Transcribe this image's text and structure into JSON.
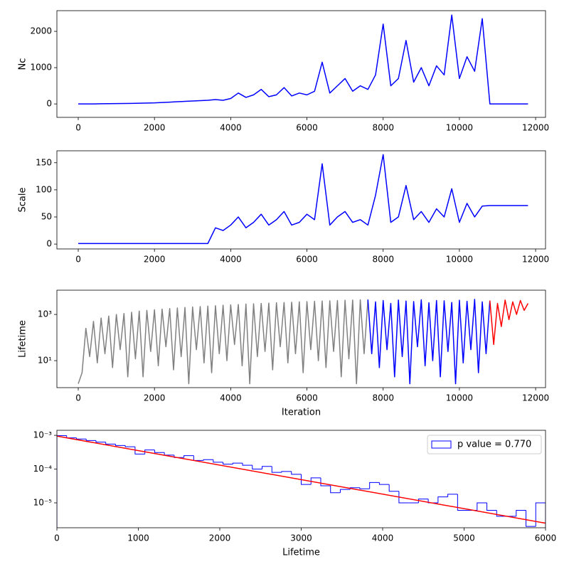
{
  "chart_data": [
    {
      "type": "line",
      "ylabel": "Nc",
      "drawstyle": "steps",
      "x": [
        0,
        200,
        400,
        600,
        800,
        1000,
        1200,
        1400,
        1600,
        1800,
        2000,
        2200,
        2400,
        2600,
        2800,
        3000,
        3200,
        3400,
        3600,
        3800,
        4000,
        4200,
        4400,
        4600,
        4800,
        5000,
        5200,
        5400,
        5600,
        5800,
        6000,
        6200,
        6400,
        6600,
        6800,
        7000,
        7200,
        7400,
        7600,
        7800,
        8000,
        8200,
        8400,
        8600,
        8800,
        9000,
        9200,
        9400,
        9600,
        9800,
        10000,
        10200,
        10400,
        10600,
        10800,
        11000,
        11200,
        11400,
        11600,
        11800
      ],
      "series": [
        {
          "color": "blue",
          "values": [
            0,
            0,
            0,
            5,
            8,
            10,
            12,
            15,
            20,
            25,
            30,
            40,
            50,
            60,
            70,
            80,
            90,
            100,
            120,
            100,
            150,
            300,
            180,
            250,
            400,
            200,
            250,
            450,
            220,
            300,
            250,
            350,
            1150,
            300,
            500,
            700,
            350,
            500,
            400,
            800,
            2200,
            500,
            700,
            1750,
            600,
            1000,
            500,
            1050,
            800,
            2450,
            700,
            1300,
            900,
            2350,
            0,
            0,
            0,
            0,
            0,
            0
          ]
        }
      ],
      "xlim": [
        -560,
        12260
      ],
      "xticks": [
        0,
        2000,
        4000,
        6000,
        8000,
        10000,
        12000
      ],
      "ylim": [
        -370,
        2570
      ],
      "yticks": [
        0,
        1000,
        2000
      ]
    },
    {
      "type": "line",
      "ylabel": "Scale",
      "x": [
        0,
        200,
        400,
        600,
        800,
        1000,
        1200,
        1400,
        1600,
        1800,
        2000,
        2200,
        2400,
        2600,
        2800,
        3000,
        3200,
        3400,
        3600,
        3800,
        4000,
        4200,
        4400,
        4600,
        4800,
        5000,
        5200,
        5400,
        5600,
        5800,
        6000,
        6200,
        6400,
        6600,
        6800,
        7000,
        7200,
        7400,
        7600,
        7800,
        8000,
        8200,
        8400,
        8600,
        8800,
        9000,
        9200,
        9400,
        9600,
        9800,
        10000,
        10200,
        10400,
        10600,
        10800,
        11000,
        11200,
        11400,
        11600,
        11800
      ],
      "series": [
        {
          "color": "blue",
          "values": [
            1,
            1,
            1,
            1,
            1,
            1,
            1,
            1,
            1,
            1,
            1,
            1,
            1,
            1,
            1,
            1,
            1,
            1,
            30,
            25,
            35,
            50,
            30,
            40,
            55,
            35,
            45,
            60,
            35,
            40,
            55,
            45,
            148,
            35,
            50,
            60,
            40,
            45,
            35,
            90,
            165,
            40,
            50,
            108,
            45,
            60,
            40,
            65,
            50,
            102,
            40,
            75,
            50,
            70,
            71,
            71,
            71,
            71,
            71,
            71
          ]
        }
      ],
      "xlim": [
        -560,
        12260
      ],
      "xticks": [
        0,
        2000,
        4000,
        6000,
        8000,
        10000,
        12000
      ],
      "ylim": [
        -9,
        172
      ],
      "yticks": [
        0,
        50,
        100,
        150
      ]
    },
    {
      "type": "line",
      "ylabel": "Lifetime",
      "xlabel": "Iteration",
      "ylog": true,
      "series": [
        {
          "color": "gray",
          "x": [
            0,
            100,
            200,
            300,
            400,
            500,
            600,
            700,
            800,
            900,
            1000,
            1100,
            1200,
            1300,
            1400,
            1500,
            1600,
            1700,
            1800,
            1900,
            2000,
            2100,
            2200,
            2300,
            2400,
            2500,
            2600,
            2700,
            2800,
            2900,
            3000,
            3100,
            3200,
            3300,
            3400,
            3500,
            3600,
            3700,
            3800,
            3900,
            4000,
            4100,
            4200,
            4300,
            4400,
            4500,
            4600,
            4700,
            4800,
            4900,
            5000,
            5100,
            5200,
            5300,
            5400,
            5500,
            5600,
            5700,
            5800,
            5900,
            6000,
            6100,
            6200,
            6300,
            6400,
            6500,
            6600,
            6700,
            6800,
            6900,
            7000,
            7100,
            7200,
            7300,
            7400,
            7500,
            7600
          ],
          "values": [
            1,
            3,
            250,
            15,
            500,
            8,
            700,
            20,
            850,
            5,
            1000,
            30,
            1100,
            2,
            1250,
            12,
            1400,
            2,
            1500,
            25,
            1600,
            6,
            1700,
            40,
            1800,
            4,
            1900,
            15,
            2000,
            1,
            2100,
            30,
            2200,
            8,
            2300,
            3,
            2400,
            20,
            2500,
            10,
            2600,
            50,
            2700,
            6,
            2800,
            1,
            2900,
            15,
            3000,
            25,
            3100,
            4,
            3200,
            40,
            3300,
            8,
            3400,
            20,
            3500,
            3,
            3600,
            30,
            3700,
            10,
            3800,
            5,
            3900,
            25,
            4000,
            2,
            4100,
            12,
            4200,
            1,
            4300,
            20,
            4400
          ]
        },
        {
          "color": "blue",
          "x": [
            7600,
            7700,
            7800,
            7900,
            8000,
            8100,
            8200,
            8300,
            8400,
            8500,
            8600,
            8700,
            8800,
            8900,
            9000,
            9100,
            9200,
            9300,
            9400,
            9500,
            9600,
            9700,
            9800,
            9900,
            10000,
            10100,
            10200,
            10300,
            10400,
            10500,
            10600,
            10700,
            10800
          ],
          "values": [
            4400,
            20,
            3500,
            5,
            4000,
            30,
            3000,
            2,
            4200,
            15,
            3800,
            1,
            3600,
            40,
            4300,
            6,
            3200,
            10,
            4000,
            2,
            3900,
            25,
            3300,
            1,
            4100,
            8,
            3700,
            30,
            4500,
            3,
            3500,
            20,
            4000
          ]
        },
        {
          "color": "red",
          "x": [
            10800,
            10900,
            11000,
            11100,
            11200,
            11300,
            11400,
            11500,
            11600,
            11700,
            11800
          ],
          "values": [
            4000,
            50,
            3000,
            300,
            4200,
            600,
            3500,
            1000,
            4000,
            1500,
            3000
          ]
        }
      ],
      "xlim": [
        -560,
        12260
      ],
      "xticks": [
        0,
        2000,
        4000,
        6000,
        8000,
        10000,
        12000
      ],
      "ylim": [
        0.68,
        11200
      ],
      "yticks": [
        {
          "value": 10,
          "label": "10¹"
        },
        {
          "value": 1000,
          "label": "10³"
        }
      ]
    },
    {
      "type": "histogram",
      "xlabel": "Lifetime",
      "ylog": true,
      "legend": "upper right",
      "bins": [
        0,
        120,
        240,
        360,
        480,
        600,
        720,
        840,
        960,
        1080,
        1200,
        1320,
        1440,
        1560,
        1680,
        1800,
        1920,
        2040,
        2160,
        2280,
        2400,
        2520,
        2640,
        2760,
        2880,
        3000,
        3120,
        3240,
        3360,
        3480,
        3600,
        3720,
        3840,
        3960,
        4080,
        4200,
        4320,
        4440,
        4560,
        4680,
        4800,
        4920,
        5040,
        5160,
        5280,
        5400,
        5520,
        5640,
        5760,
        5880,
        6000
      ],
      "series": [
        {
          "name": "p value = 0.770",
          "color": "blue",
          "values": [
            0.00098,
            0.00084,
            0.00078,
            0.0007,
            0.00063,
            0.00055,
            0.0005,
            0.00046,
            0.00028,
            0.00037,
            0.00031,
            0.00026,
            0.00022,
            0.00025,
            0.00018,
            0.00019,
            0.00016,
            0.00014,
            0.00015,
            0.00013,
            0.0001,
            0.00012,
            8e-05,
            8.5e-05,
            7e-05,
            3.5e-05,
            5.5e-05,
            3.2e-05,
            2e-05,
            2.5e-05,
            2.8e-05,
            2.6e-05,
            4e-05,
            3.5e-05,
            2.2e-05,
            1e-05,
            1e-05,
            1.3e-05,
            1e-05,
            1.5e-05,
            1.8e-05,
            6e-06,
            6e-06,
            1e-05,
            6e-06,
            4e-06,
            4e-06,
            6e-06,
            2e-06,
            1e-05
          ]
        }
      ],
      "fit": {
        "color": "red",
        "x": [
          0,
          6000
        ],
        "values": [
          0.00095,
          2.5e-06
        ]
      },
      "xlim": [
        0,
        6000
      ],
      "xticks": [
        0,
        1000,
        2000,
        3000,
        4000,
        5000,
        6000
      ],
      "ylim": [
        1.83e-06,
        0.00141
      ],
      "yticks": [
        {
          "value": 1e-05,
          "label": "10⁻⁵"
        },
        {
          "value": 0.0001,
          "label": "10⁻⁴"
        },
        {
          "value": 0.001,
          "label": "10⁻³"
        }
      ]
    }
  ]
}
